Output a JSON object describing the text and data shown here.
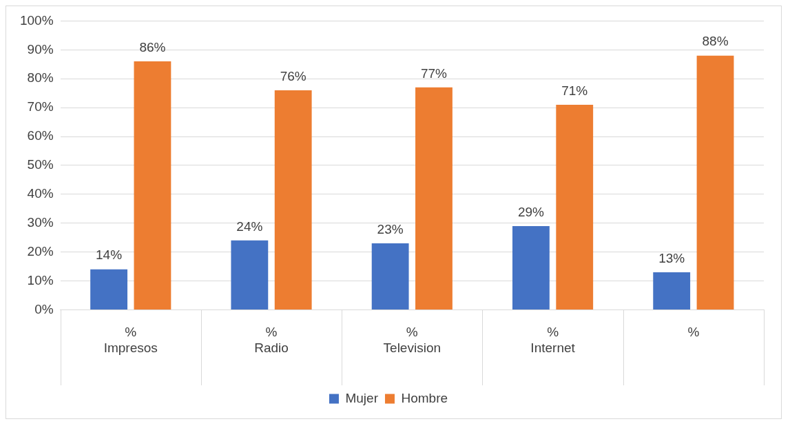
{
  "chart_data": {
    "type": "bar",
    "categories": [
      "%\nImpresos",
      "%\nRadio",
      "%\nTelevision",
      "%\nInternet",
      "%"
    ],
    "series": [
      {
        "name": "Mujer",
        "color": "#4472c4",
        "values": [
          14,
          24,
          23,
          29,
          13
        ],
        "value_labels": [
          "14%",
          "24%",
          "23%",
          "29%",
          "13%"
        ]
      },
      {
        "name": "Hombre",
        "color": "#ed7d31",
        "values": [
          86,
          76,
          77,
          71,
          88
        ],
        "value_labels": [
          "86%",
          "76%",
          "77%",
          "71%",
          "88%"
        ]
      }
    ],
    "ylim": [
      0,
      100
    ],
    "yticks": [
      {
        "value": 0,
        "label": "0%"
      },
      {
        "value": 10,
        "label": "10%"
      },
      {
        "value": 20,
        "label": "20%"
      },
      {
        "value": 30,
        "label": "30%"
      },
      {
        "value": 40,
        "label": "40%"
      },
      {
        "value": 50,
        "label": "50%"
      },
      {
        "value": 60,
        "label": "60%"
      },
      {
        "value": 70,
        "label": "70%"
      },
      {
        "value": 80,
        "label": "80%"
      },
      {
        "value": 90,
        "label": "90%"
      },
      {
        "value": 100,
        "label": "100%"
      }
    ],
    "grid": "y",
    "legend": "bottom"
  }
}
